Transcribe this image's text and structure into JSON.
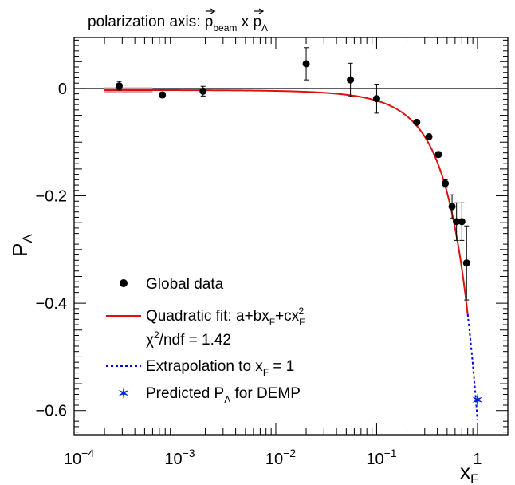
{
  "chart_data": {
    "type": "scatter",
    "title": "polarization axis: p⃗ beam x p⃗ Λ",
    "title_parts": {
      "prefix": "polarization axis: ",
      "p1": "p",
      "sub1": "beam",
      "mid": " x ",
      "p2": "p",
      "sub2": "Λ"
    },
    "xlabel": {
      "main": "x",
      "sub": "F"
    },
    "ylabel": {
      "main": "P",
      "sub": "Λ"
    },
    "x_scale": "log",
    "xlim": [
      0.0001,
      2
    ],
    "ylim": [
      -0.645,
      0.095
    ],
    "x_ticks": [
      {
        "value": 0.0001,
        "base": "10",
        "exp": "−4"
      },
      {
        "value": 0.001,
        "base": "10",
        "exp": "−3"
      },
      {
        "value": 0.01,
        "base": "10",
        "exp": "−2"
      },
      {
        "value": 0.1,
        "base": "10",
        "exp": "−1"
      },
      {
        "value": 1,
        "label": "1"
      }
    ],
    "y_ticks": [
      {
        "value": 0,
        "label": "0"
      },
      {
        "value": -0.2,
        "label": "−0.2"
      },
      {
        "value": -0.4,
        "label": "−0.4"
      },
      {
        "value": -0.6,
        "label": "−0.6"
      }
    ],
    "reference_line_y": 0,
    "series": [
      {
        "name": "Global data",
        "kind": "points",
        "color": "#000000",
        "points": [
          {
            "x": 0.00028,
            "y": 0.005,
            "err": 0.008
          },
          {
            "x": 0.00075,
            "y": -0.012,
            "err": 0.005
          },
          {
            "x": 0.0019,
            "y": -0.005,
            "err": 0.009
          },
          {
            "x": 0.02,
            "y": 0.046,
            "err": 0.03
          },
          {
            "x": 0.055,
            "y": 0.016,
            "err": 0.031
          },
          {
            "x": 0.1,
            "y": -0.019,
            "err": 0.027
          },
          {
            "x": 0.25,
            "y": -0.063,
            "err": 0.004
          },
          {
            "x": 0.33,
            "y": -0.09,
            "err": 0.005
          },
          {
            "x": 0.41,
            "y": -0.123,
            "err": 0.005
          },
          {
            "x": 0.48,
            "y": -0.177,
            "err": 0.007
          },
          {
            "x": 0.56,
            "y": -0.22,
            "err": 0.022
          },
          {
            "x": 0.62,
            "y": -0.248,
            "err": 0.035
          },
          {
            "x": 0.7,
            "y": -0.248,
            "err": 0.035
          },
          {
            "x": 0.78,
            "y": -0.325,
            "err": 0.069
          }
        ]
      },
      {
        "name": "Quadratic fit: a+bx_F+cx_F^2",
        "kind": "fit",
        "color": "#dd1111",
        "band_color": "#d49a9a",
        "params": {
          "a": -0.003,
          "b": -0.15,
          "c": -0.465
        },
        "x_range": [
          0.0002,
          0.8
        ],
        "x_range_band": [
          0.0002,
          0.0006
        ]
      },
      {
        "name": "Extrapolation to x_F = 1",
        "kind": "extrapolation",
        "color": "#0000ee",
        "x_range": [
          0.8,
          1.0
        ]
      },
      {
        "name": "Predicted P_Λ for DEMP",
        "kind": "marker",
        "color": "#0022dd",
        "x": 1.0,
        "y": -0.58
      }
    ],
    "legend": {
      "placement": "bottom-left",
      "entries": [
        {
          "text": "Global data"
        },
        {
          "parts": [
            "Quadratic fit: a+bx",
            "F",
            "+cx",
            "F",
            "2"
          ]
        },
        {
          "parts": [
            "χ",
            "2",
            "/ndf = 1.42"
          ]
        },
        {
          "parts": [
            "Extrapolation to x",
            "F",
            " = 1"
          ]
        },
        {
          "parts": [
            "Predicted P",
            "Λ",
            " for DEMP"
          ]
        }
      ]
    }
  }
}
